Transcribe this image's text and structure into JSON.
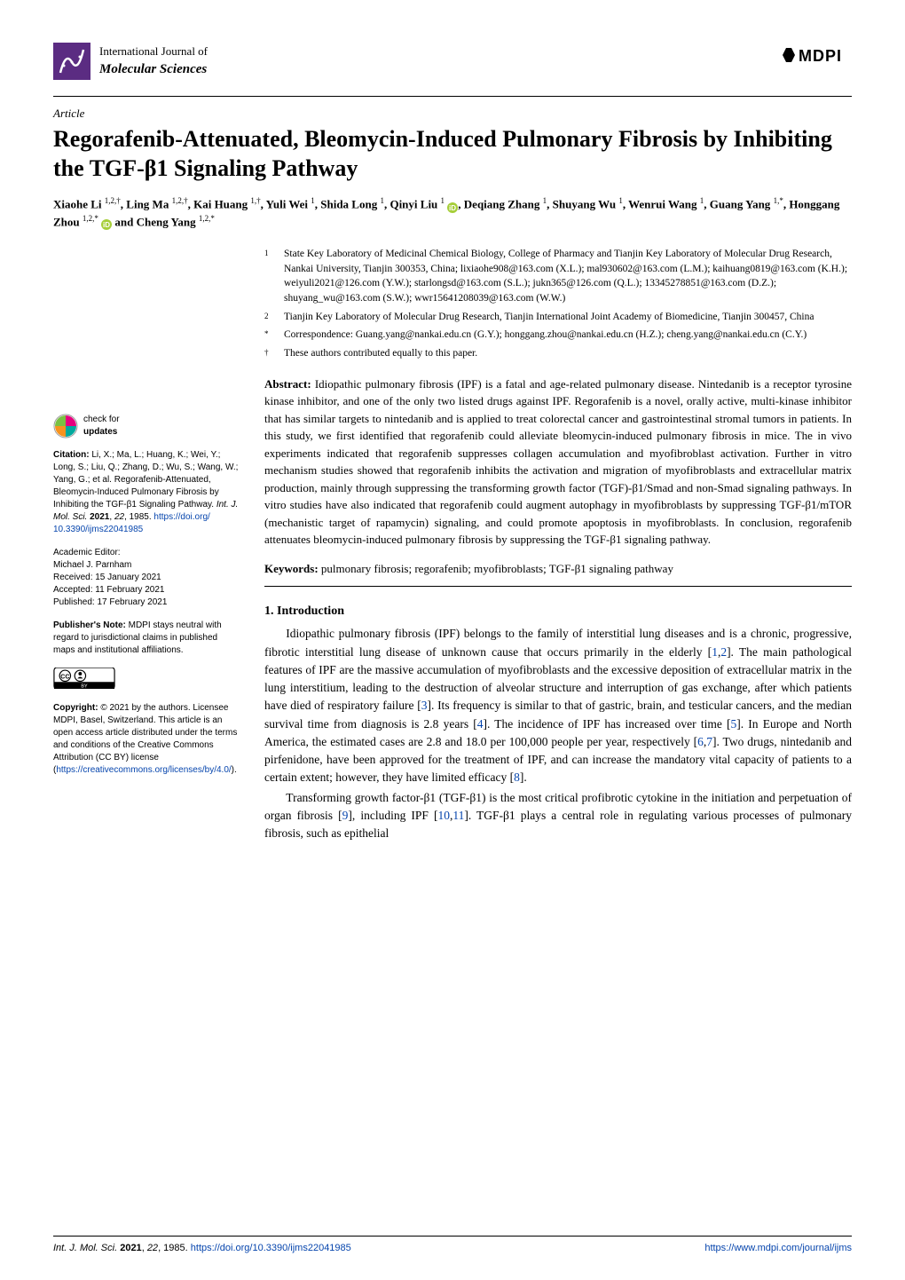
{
  "colors": {
    "text": "#000000",
    "background": "#ffffff",
    "link": "#0645ad",
    "orcid_green": "#a6ce39",
    "icon_purple": "#5b2c82",
    "check_pink": "#e6007e",
    "check_teal": "#00a99d",
    "check_orange": "#f7931e",
    "cc_gray": "#000000"
  },
  "journal": {
    "line1": "International Journal of",
    "line2": "Molecular Sciences"
  },
  "publisher_logo": "MDPI",
  "article_type": "Article",
  "title": "Regorafenib-Attenuated, Bleomycin-Induced Pulmonary Fibrosis by Inhibiting the TGF-β1 Signaling Pathway",
  "authors_html": "Xiaohe Li <sup>1,2,†</sup>, Ling Ma <sup>1,2,†</sup>, Kai Huang <sup>1,†</sup>, Yuli Wei <sup>1</sup>, Shida Long <sup>1</sup>, Qinyi Liu <sup>1</sup> __ORCID__, Deqiang Zhang <sup>1</sup>, Shuyang Wu <sup>1</sup>, Wenrui Wang <sup>1</sup>, Guang Yang <sup>1,*</sup>, Honggang Zhou <sup>1,2,*</sup> __ORCID__ and Cheng Yang <sup>1,2,*</sup>",
  "affiliations": [
    {
      "num": "1",
      "text": "State Key Laboratory of Medicinal Chemical Biology, College of Pharmacy and Tianjin Key Laboratory of Molecular Drug Research, Nankai University, Tianjin 300353, China; lixiaohe908@163.com (X.L.); mal930602@163.com (L.M.); kaihuang0819@163.com (K.H.); weiyuli2021@126.com (Y.W.); starlongsd@163.com (S.L.); jukn365@126.com (Q.L.); 13345278851@163.com (D.Z.); shuyang_wu@163.com (S.W.); wwr15641208039@163.com (W.W.)"
    },
    {
      "num": "2",
      "text": "Tianjin Key Laboratory of Molecular Drug Research, Tianjin International Joint Academy of Biomedicine, Tianjin 300457, China"
    },
    {
      "num": "*",
      "text": "Correspondence: Guang.yang@nankai.edu.cn (G.Y.); honggang.zhou@nankai.edu.cn (H.Z.); cheng.yang@nankai.edu.cn (C.Y.)"
    },
    {
      "num": "†",
      "text": "These authors contributed equally to this paper."
    }
  ],
  "abstract_label": "Abstract:",
  "abstract_text": "Idiopathic pulmonary fibrosis (IPF) is a fatal and age-related pulmonary disease. Nintedanib is a receptor tyrosine kinase inhibitor, and one of the only two listed drugs against IPF. Regorafenib is a novel, orally active, multi-kinase inhibitor that has similar targets to nintedanib and is applied to treat colorectal cancer and gastrointestinal stromal tumors in patients. In this study, we first identified that regorafenib could alleviate bleomycin-induced pulmonary fibrosis in mice. The in vivo experiments indicated that regorafenib suppresses collagen accumulation and myofibroblast activation. Further in vitro mechanism studies showed that regorafenib inhibits the activation and migration of myofibroblasts and extracellular matrix production, mainly through suppressing the transforming growth factor (TGF)-β1/Smad and non-Smad signaling pathways. In vitro studies have also indicated that regorafenib could augment autophagy in myofibroblasts by suppressing TGF-β1/mTOR (mechanistic target of rapamycin) signaling, and could promote apoptosis in myofibroblasts. In conclusion, regorafenib attenuates bleomycin-induced pulmonary fibrosis by suppressing the TGF-β1 signaling pathway.",
  "keywords_label": "Keywords:",
  "keywords_text": "pulmonary fibrosis; regorafenib; myofibroblasts; TGF-β1 signaling pathway",
  "section_heading": "1. Introduction",
  "body_paragraphs": [
    "Idiopathic pulmonary fibrosis (IPF) belongs to the family of interstitial lung diseases and is a chronic, progressive, fibrotic interstitial lung disease of unknown cause that occurs primarily in the elderly [__R1__,__R2__]. The main pathological features of IPF are the massive accumulation of myofibroblasts and the excessive deposition of extracellular matrix in the lung interstitium, leading to the destruction of alveolar structure and interruption of gas exchange, after which patients have died of respiratory failure [__R3__]. Its frequency is similar to that of gastric, brain, and testicular cancers, and the median survival time from diagnosis is 2.8 years [__R4__]. The incidence of IPF has increased over time [__R5__]. In Europe and North America, the estimated cases are 2.8 and 18.0 per 100,000 people per year, respectively [__R6__,__R7__]. Two drugs, nintedanib and pirfenidone, have been approved for the treatment of IPF, and can increase the mandatory vital capacity of patients to a certain extent; however, they have limited efficacy [__R8__].",
    "Transforming growth factor-β1 (TGF-β1) is the most critical profibrotic cytokine in the initiation and perpetuation of organ fibrosis [__R9__], including IPF [__R10__,__R11__]. TGF-β1 plays a central role in regulating various processes of pulmonary fibrosis, such as epithelial"
  ],
  "sidebar": {
    "check_updates_label": "check for",
    "check_updates_label2": "updates",
    "citation_label": "Citation:",
    "citation_text": "Li, X.; Ma, L.; Huang, K.; Wei, Y.; Long, S.; Liu, Q.; Zhang, D.; Wu, S.; Wang, W.; Yang, G.; et al. Regorafenib-Attenuated, Bleomycin-Induced Pulmonary Fibrosis by Inhibiting the TGF-β1 Signaling Pathway. ",
    "citation_journal": "Int. J. Mol. Sci.",
    "citation_rest": " 2021, 22, 1985. https://doi.org/10.3390/ijms22041985",
    "editor_label": "Academic Editor:",
    "editor_name": "Michael J. Parnham",
    "received": "Received: 15 January 2021",
    "accepted": "Accepted: 11 February 2021",
    "published": "Published: 17 February 2021",
    "pubnote_label": "Publisher's Note:",
    "pubnote_text": "MDPI stays neutral with regard to jurisdictional claims in published maps and institutional affiliations.",
    "copyright_label": "Copyright:",
    "copyright_text": "© 2021 by the authors. Licensee MDPI, Basel, Switzerland. This article is an open access article distributed under the terms and conditions of the Creative Commons Attribution (CC BY) license (https://creativecommons.org/licenses/by/4.0/)."
  },
  "footer": {
    "left_italic": "Int. J. Mol. Sci.",
    "left_rest": " 2021, 22, 1985. https://doi.org/10.3390/ijms22041985",
    "right": "https://www.mdpi.com/journal/ijms"
  }
}
